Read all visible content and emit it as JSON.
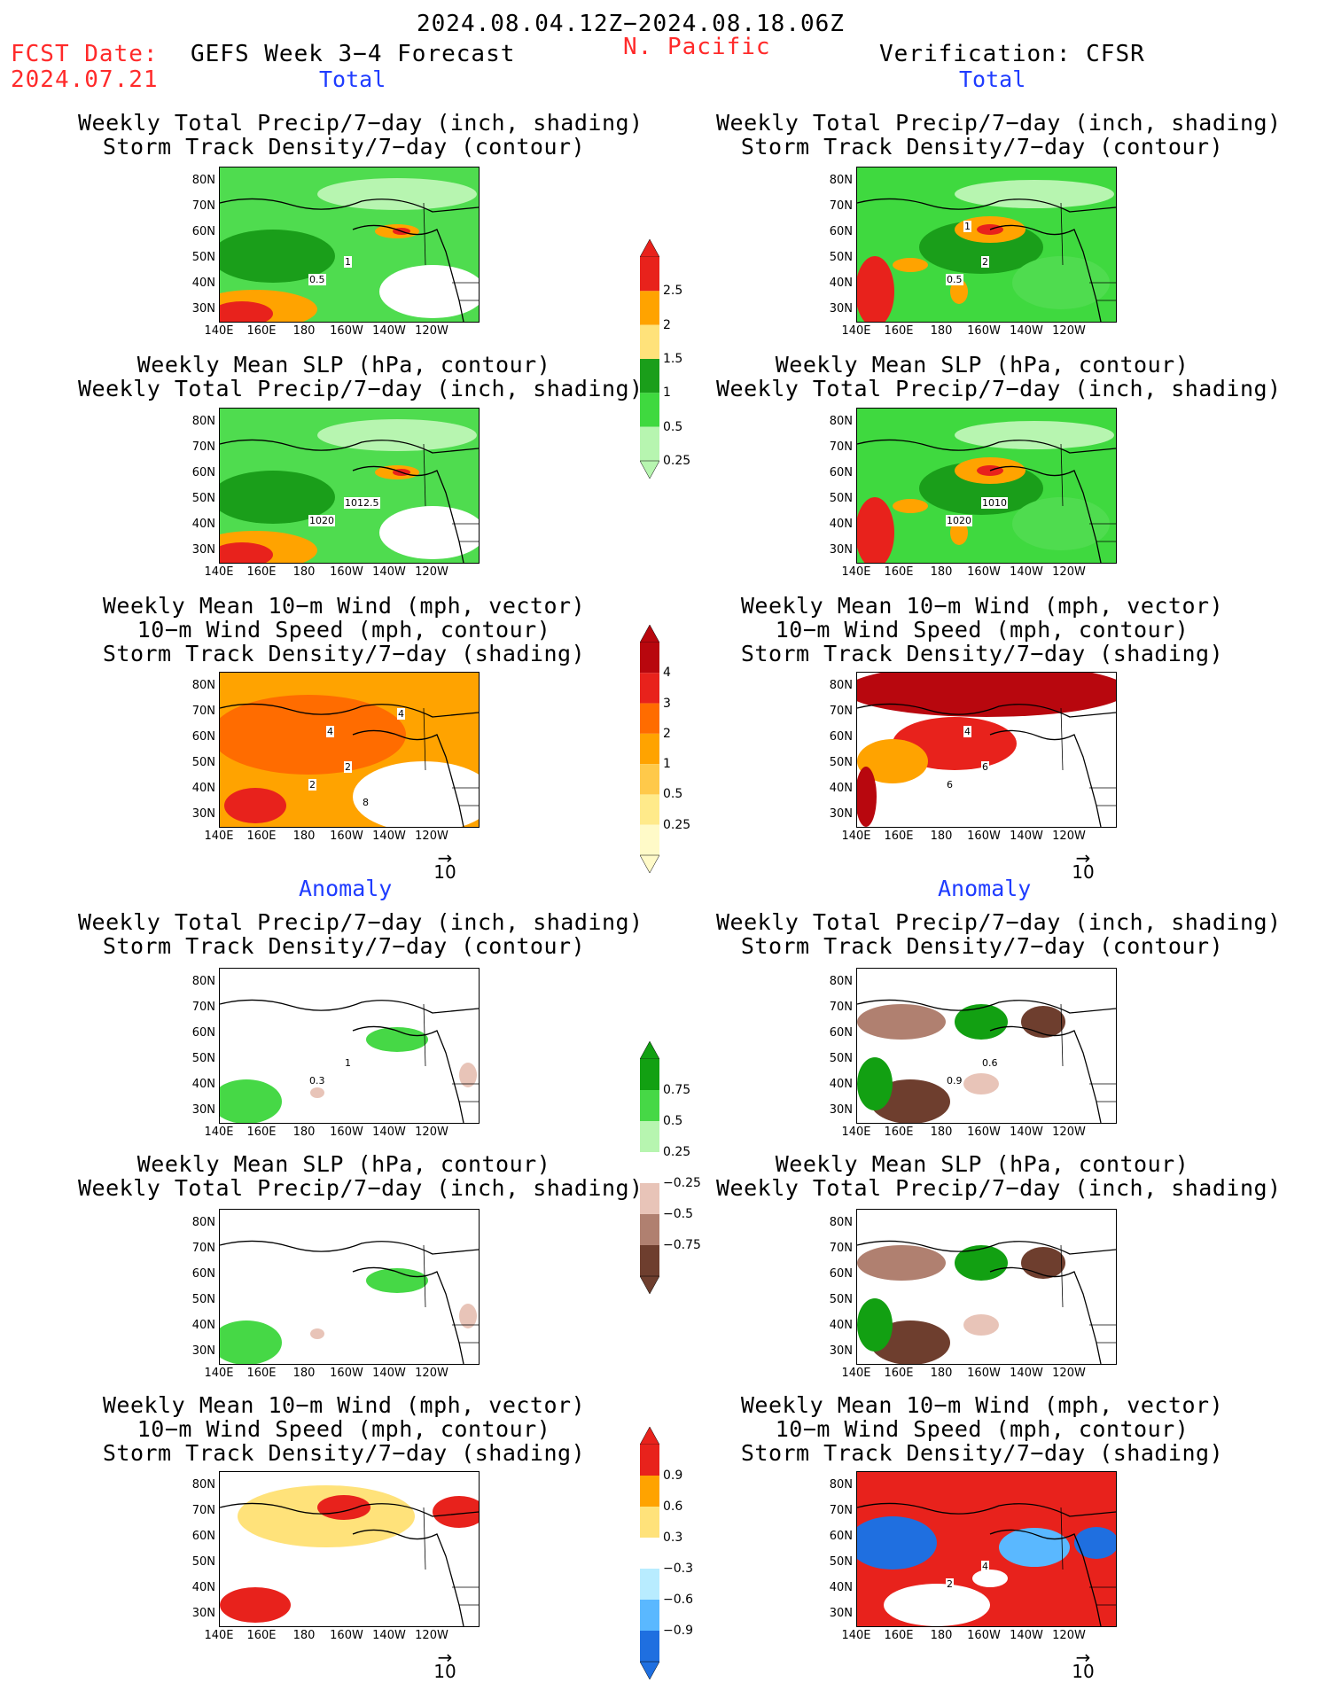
{
  "header": {
    "date_range": "2024.08.04.12Z−2024.08.18.06Z",
    "fcst_label": "FCST Date:",
    "fcst_date": "2024.07.21",
    "model": "GEFS Week 3−4 Forecast",
    "region": "N. Pacific",
    "verification": "Verification: CFSR"
  },
  "sections": {
    "total_left": "Total",
    "total_right": "Total",
    "anomaly_left": "Anomaly",
    "anomaly_right": "Anomaly"
  },
  "panel_titles": {
    "precip_storm": [
      "Weekly Total Precip/7−day (inch, shading)",
      "Storm Track Density/7−day (contour)"
    ],
    "slp_precip": [
      "Weekly Mean SLP (hPa, contour)",
      "Weekly Total Precip/7−day (inch, shading)"
    ],
    "wind_storm": [
      "Weekly Mean 10−m Wind (mph, vector)",
      "10−m Wind Speed (mph, contour)",
      "Storm Track Density/7−day (shading)"
    ]
  },
  "axes": {
    "lat_ticks": [
      "80N",
      "70N",
      "60N",
      "50N",
      "40N",
      "30N"
    ],
    "lon_ticks": [
      "140E",
      "160E",
      "180",
      "160W",
      "140W",
      "120W"
    ]
  },
  "vector_scale": "10",
  "colorbars": {
    "precip_total": {
      "labels": [
        "2.5",
        "2",
        "1.5",
        "1",
        "0.5",
        "0.25"
      ],
      "colors": [
        "#e8221c",
        "#ffa300",
        "#ffe27a",
        "#1a9e1a",
        "#3fd93f",
        "#b7f5b0"
      ]
    },
    "storm_total": {
      "labels": [
        "4",
        "3",
        "2",
        "1",
        "0.5",
        "0.25"
      ],
      "colors": [
        "#b8070e",
        "#e8221c",
        "#ff6c00",
        "#ffa300",
        "#ffc94a",
        "#ffea8a",
        "#fffac8"
      ]
    },
    "precip_anom": {
      "labels": [
        "0.75",
        "0.5",
        "0.25",
        "−0.25",
        "−0.5",
        "−0.75"
      ],
      "colors": [
        "#12a012",
        "#46d846",
        "#b7f5b0",
        "#ffffff",
        "#e8c4b8",
        "#b08070",
        "#6e3e2e"
      ]
    },
    "storm_anom": {
      "labels": [
        "0.9",
        "0.6",
        "0.3",
        "−0.3",
        "−0.6",
        "−0.9"
      ],
      "colors": [
        "#e8221c",
        "#ffa300",
        "#ffe27a",
        "#ffffff",
        "#b8ecff",
        "#5ab8ff",
        "#1f6fe0"
      ]
    }
  },
  "map_labels": {
    "l_precip_storm": [
      "1",
      "0.5"
    ],
    "r_precip_storm": [
      "2",
      "0.5",
      "1"
    ],
    "l_slp": [
      "1012.5",
      "1020"
    ],
    "r_slp": [
      "1010",
      "1020"
    ],
    "l_wind": [
      "2",
      "2",
      "4",
      "4",
      "8"
    ],
    "r_wind": [
      "6",
      "6",
      "4"
    ],
    "l_anom_precip": [
      "1",
      "0.3"
    ],
    "r_anom_precip": [
      "0.6",
      "0.9"
    ],
    "r_anom_wind": [
      "4",
      "2"
    ]
  }
}
